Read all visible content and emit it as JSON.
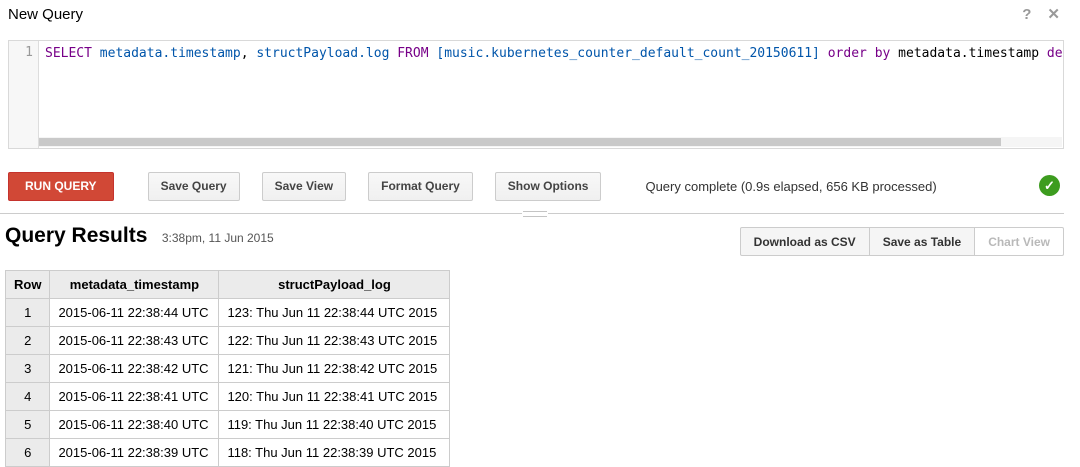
{
  "header": {
    "title": "New Query",
    "help_icon": "?",
    "close_icon": "✕"
  },
  "editor": {
    "line_number": "1",
    "code_tokens": [
      {
        "type": "keyword",
        "text": "SELECT"
      },
      {
        "type": "plain",
        "text": " "
      },
      {
        "type": "field",
        "text": "metadata.timestamp"
      },
      {
        "type": "plain",
        "text": ", "
      },
      {
        "type": "field",
        "text": "structPayload.log"
      },
      {
        "type": "plain",
        "text": " "
      },
      {
        "type": "keyword",
        "text": "FROM"
      },
      {
        "type": "plain",
        "text": " "
      },
      {
        "type": "field",
        "text": "[music.kubernetes_counter_default_count_20150611]"
      },
      {
        "type": "plain",
        "text": " "
      },
      {
        "type": "keyword",
        "text": "order"
      },
      {
        "type": "plain",
        "text": " "
      },
      {
        "type": "keyword",
        "text": "by"
      },
      {
        "type": "plain",
        "text": " metadata.timestamp "
      },
      {
        "type": "keyword",
        "text": "des"
      }
    ]
  },
  "toolbar": {
    "run_query": "RUN QUERY",
    "save_query": "Save Query",
    "save_view": "Save View",
    "format_query": "Format Query",
    "show_options": "Show Options",
    "status": "Query complete (0.9s elapsed, 656 KB processed)",
    "check_glyph": "✓"
  },
  "results": {
    "title": "Query Results",
    "timestamp": "3:38pm, 11 Jun 2015",
    "download_csv": "Download as CSV",
    "save_as_table": "Save as Table",
    "chart_view": "Chart View"
  },
  "table": {
    "columns": [
      "Row",
      "metadata_timestamp",
      "structPayload_log"
    ],
    "rows": [
      [
        "1",
        "2015-06-11 22:38:44 UTC",
        "123: Thu Jun 11 22:38:44 UTC 2015"
      ],
      [
        "2",
        "2015-06-11 22:38:43 UTC",
        "122: Thu Jun 11 22:38:43 UTC 2015"
      ],
      [
        "3",
        "2015-06-11 22:38:42 UTC",
        "121: Thu Jun 11 22:38:42 UTC 2015"
      ],
      [
        "4",
        "2015-06-11 22:38:41 UTC",
        "120: Thu Jun 11 22:38:41 UTC 2015"
      ],
      [
        "5",
        "2015-06-11 22:38:40 UTC",
        "119: Thu Jun 11 22:38:40 UTC 2015"
      ],
      [
        "6",
        "2015-06-11 22:38:39 UTC",
        "118: Thu Jun 11 22:38:39 UTC 2015"
      ]
    ]
  },
  "colors": {
    "run_button": "#d14836",
    "keyword": "#770088",
    "field": "#0055aa",
    "status_check_green": "#3d9c1f",
    "divider": "#cccccc",
    "table_header_bg": "#ebebeb"
  }
}
